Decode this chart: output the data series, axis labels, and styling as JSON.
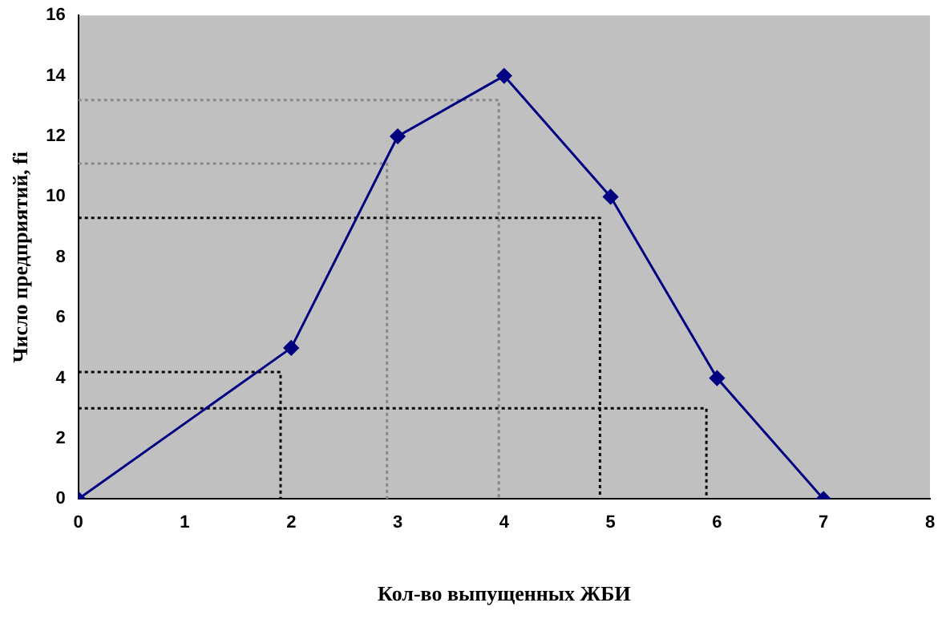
{
  "chart_data": {
    "type": "line",
    "xlabel": "Кол-во выпущенных ЖБИ",
    "ylabel": "Число предприятий, fi",
    "xlim": [
      0,
      8
    ],
    "xticks": [
      0,
      1,
      2,
      3,
      4,
      5,
      6,
      7,
      8
    ],
    "ylim": [
      0,
      16
    ],
    "yticks": [
      0,
      2,
      4,
      6,
      8,
      10,
      12,
      14,
      16
    ],
    "grid": false,
    "legend": false,
    "marker": "diamond",
    "line_style": "solid",
    "series": [
      {
        "color": "#000080",
        "x": [
          0,
          2,
          3,
          4,
          5,
          6,
          7
        ],
        "values": [
          0,
          5,
          12,
          14,
          10,
          4,
          0
        ]
      },
      {
        "color": "#000000",
        "x": [
          0,
          1.9,
          1.9
        ],
        "values": [
          4.2,
          4.2,
          0
        ],
        "marker": "none",
        "line_style": "dotted"
      },
      {
        "color": "#000000",
        "x": [
          0,
          5.9,
          5.9
        ],
        "values": [
          3,
          3,
          0
        ],
        "marker": "none",
        "line_style": "dotted"
      },
      {
        "color": "#000000",
        "x": [
          0,
          4.9,
          4.9
        ],
        "values": [
          9.3,
          9.3,
          0
        ],
        "marker": "none",
        "line_style": "dotted"
      },
      {
        "color": "#888888",
        "x": [
          0,
          2.9,
          2.9
        ],
        "values": [
          11.1,
          11.1,
          0
        ],
        "marker": "none",
        "line_style": "dotted"
      },
      {
        "color": "#888888",
        "x": [
          0,
          3.95,
          3.95
        ],
        "values": [
          13.2,
          13.2,
          0
        ],
        "marker": "none",
        "line_style": "dotted"
      }
    ]
  }
}
